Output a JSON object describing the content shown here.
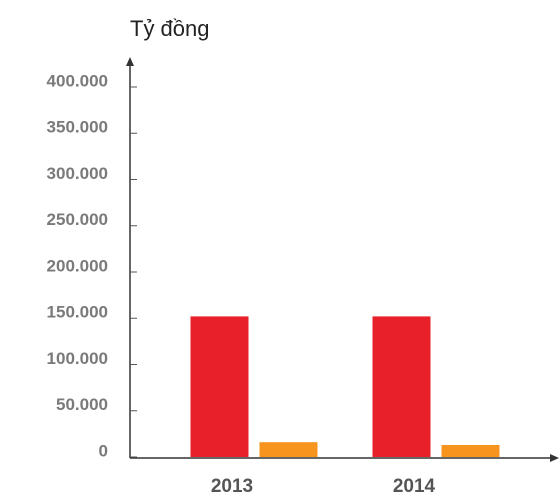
{
  "chart_data": {
    "type": "bar",
    "y_label": "Tỷ đồng",
    "categories": [
      "2013",
      "2014"
    ],
    "series": [
      {
        "color": "#e8202a",
        "values": [
          152000,
          152000
        ]
      },
      {
        "color": "#f7941d",
        "values": [
          16000,
          13000
        ]
      }
    ],
    "ylim": [
      0,
      400000
    ],
    "yticks": [
      0,
      {
        "value": 50000,
        "label": "50.000"
      },
      {
        "value": 100000,
        "label": "100.000"
      },
      {
        "value": 150000,
        "label": "150.000"
      },
      {
        "value": 200000,
        "label": "200.000"
      },
      {
        "value": 250000,
        "label": "250.000"
      },
      {
        "value": 300000,
        "label": "300.000"
      },
      {
        "value": 350000,
        "label": "350.000"
      },
      {
        "value": 400000,
        "label": "400.000"
      }
    ]
  }
}
